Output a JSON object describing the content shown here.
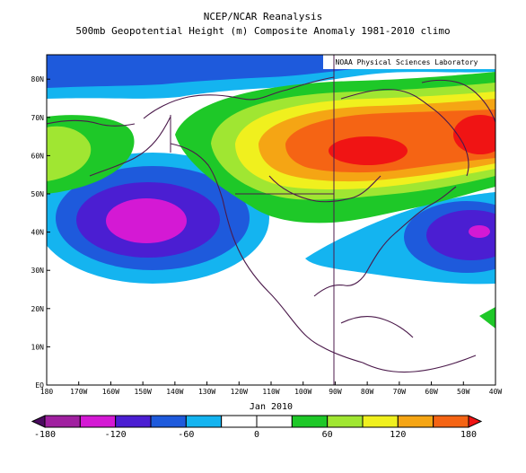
{
  "title_line1": "NCEP/NCAR Reanalysis",
  "title_line2": "500mb Geopotential Height (m) Composite Anomaly 1981-2010 climo",
  "credit": "NOAA Physical Sciences Laboratory",
  "date_label": "Jan 2010",
  "x_ticks": [
    "180",
    "170W",
    "160W",
    "150W",
    "140W",
    "130W",
    "120W",
    "110W",
    "100W",
    "90W",
    "80W",
    "70W",
    "60W",
    "50W",
    "40W"
  ],
  "y_ticks": [
    "EQ",
    "10N",
    "20N",
    "30N",
    "40N",
    "50N",
    "60N",
    "70N",
    "80N"
  ],
  "colorbar": {
    "labels": [
      "-180",
      "-120",
      "-60",
      "0",
      "60",
      "120",
      "180"
    ],
    "levels": [
      -180,
      -150,
      -120,
      -90,
      -60,
      -30,
      0,
      30,
      60,
      90,
      120,
      150,
      180
    ],
    "colors": [
      "#4b0a5f",
      "#a020a0",
      "#d419d4",
      "#4b1ed2",
      "#1e5adc",
      "#14b4f0",
      "#ffffff",
      "#ffffff",
      "#1ec828",
      "#a0e632",
      "#f0f01e",
      "#f5a514",
      "#f56414",
      "#f01414"
    ]
  }
}
